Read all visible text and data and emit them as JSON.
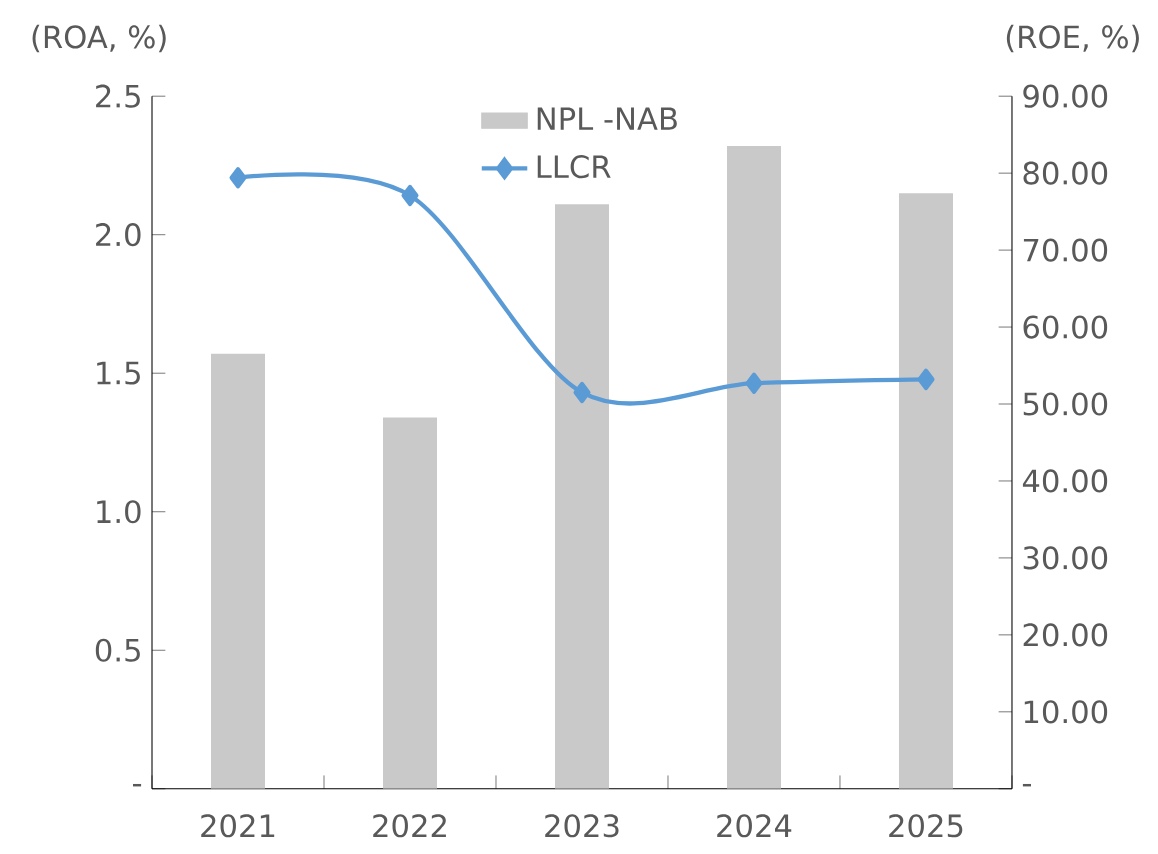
{
  "chart_data": {
    "type": "bar",
    "categories": [
      "2021",
      "2022",
      "2023",
      "2024",
      "2025"
    ],
    "series": [
      {
        "name": "NPL -NAB",
        "color": "#c9c9c9",
        "values": [
          1.57,
          1.34,
          2.11,
          2.32,
          2.15
        ]
      },
      {
        "name": "LLCR",
        "type": "line",
        "axis": "y2",
        "color": "#5b9bd5",
        "marker": "diamond",
        "values": [
          79.4,
          77.1,
          51.5,
          52.7,
          53.2
        ]
      }
    ],
    "ylabel": "(ROA, %)",
    "y2label": "(ROE, %)",
    "ylim": [
      0,
      2.5
    ],
    "yticks": [
      {
        "value": 0,
        "label": "-"
      },
      {
        "value": 0.5,
        "label": "0.5"
      },
      {
        "value": 1,
        "label": "1.0"
      },
      {
        "value": 1.5,
        "label": "1.5"
      },
      {
        "value": 2,
        "label": "2.0"
      },
      {
        "value": 2.5,
        "label": "2.5"
      }
    ],
    "y2lim": [
      0,
      90
    ],
    "y2ticks": [
      {
        "value": 0,
        "label": "-"
      },
      {
        "value": 10,
        "label": "10.00"
      },
      {
        "value": 20,
        "label": "20.00"
      },
      {
        "value": 30,
        "label": "30.00"
      },
      {
        "value": 40,
        "label": "40.00"
      },
      {
        "value": 50,
        "label": "50.00"
      },
      {
        "value": 60,
        "label": "60.00"
      },
      {
        "value": 70,
        "label": "70.00"
      },
      {
        "value": 80,
        "label": "80.00"
      },
      {
        "value": 90,
        "label": "90.00"
      }
    ],
    "grid": false,
    "legend": "top"
  }
}
